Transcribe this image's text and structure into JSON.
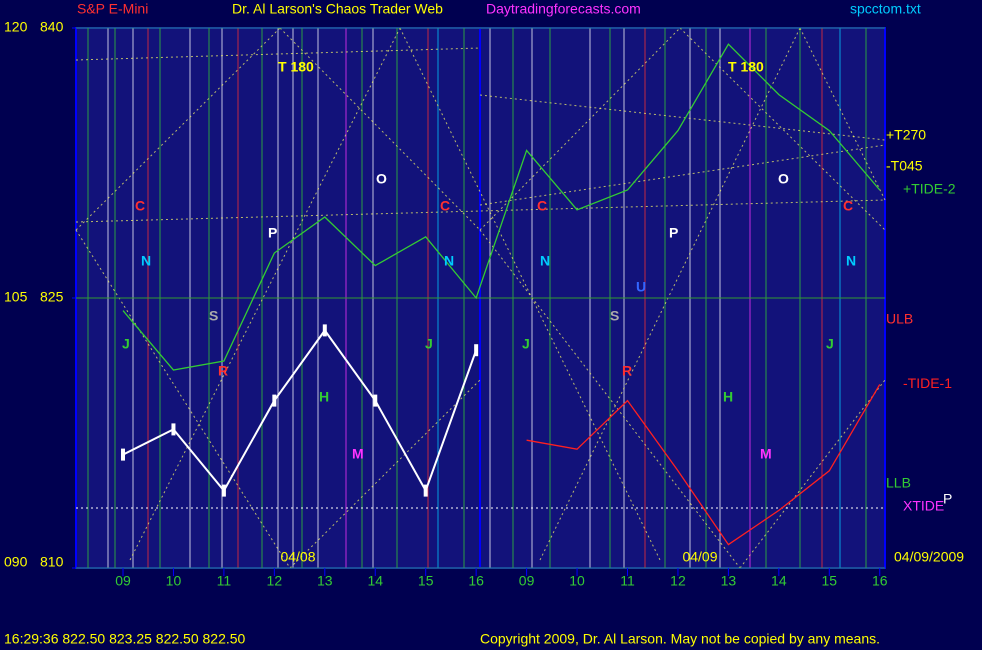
{
  "chart_data": {
    "type": "line",
    "subtitle": "S&P E-Mini",
    "title": "Dr. Al Larson's Chaos Trader Web",
    "site": "Daytradingforecasts.com",
    "file": "spcctom.txt",
    "categories": [
      "09",
      "10",
      "11",
      "12",
      "13",
      "14",
      "15",
      "16",
      "09",
      "10",
      "11",
      "12",
      "13",
      "14",
      "15",
      "16"
    ],
    "date_labels": [
      "04/08",
      "04/09",
      "04/09/2009"
    ],
    "ylim": [
      810,
      840
    ],
    "yticks": [
      810,
      825,
      840
    ],
    "y2lim": [
      90,
      120
    ],
    "y2ticks": [
      {
        "value": 90,
        "label": "090"
      },
      105,
      120
    ],
    "grid": true,
    "series": [
      {
        "color": "#ffffff",
        "values": [
          816.3,
          817.7,
          814.3,
          819.3,
          823.2,
          819.3,
          814.3,
          822.1,
          null,
          null,
          null,
          null,
          null,
          null,
          null,
          null
        ]
      },
      {
        "name": "+TIDE-2",
        "color": "#33cc33",
        "values": [
          824.3,
          821.0,
          821.5,
          827.5,
          829.5,
          826.8,
          828.4,
          825.0,
          833.2,
          829.9,
          831.0,
          834.3,
          839.1,
          836.3,
          834.3,
          831.0
        ]
      },
      {
        "name": "-TIDE-1",
        "color": "#ff2020",
        "values": [
          null,
          null,
          null,
          null,
          null,
          null,
          null,
          null,
          817.1,
          816.6,
          819.3,
          815.4,
          811.3,
          813.2,
          815.4,
          820.2
        ]
      }
    ],
    "annotations": [
      "T 180",
      "T 180",
      "C",
      "C",
      "C",
      "C",
      "N",
      "N",
      "N",
      "N",
      "P",
      "P",
      "O",
      "O",
      "S",
      "S",
      "R",
      "R",
      "J",
      "J",
      "J",
      "J",
      "H",
      "H",
      "M",
      "M",
      "U"
    ],
    "right_labels": [
      "+T270",
      "-T045",
      "ULB",
      "LLB",
      "XTIDE",
      "P"
    ],
    "status": "16:29:36  822.50 823.25 822.50 822.50",
    "copyright": "Copyright 2009, Dr. Al Larson. May not be copied by any means."
  }
}
